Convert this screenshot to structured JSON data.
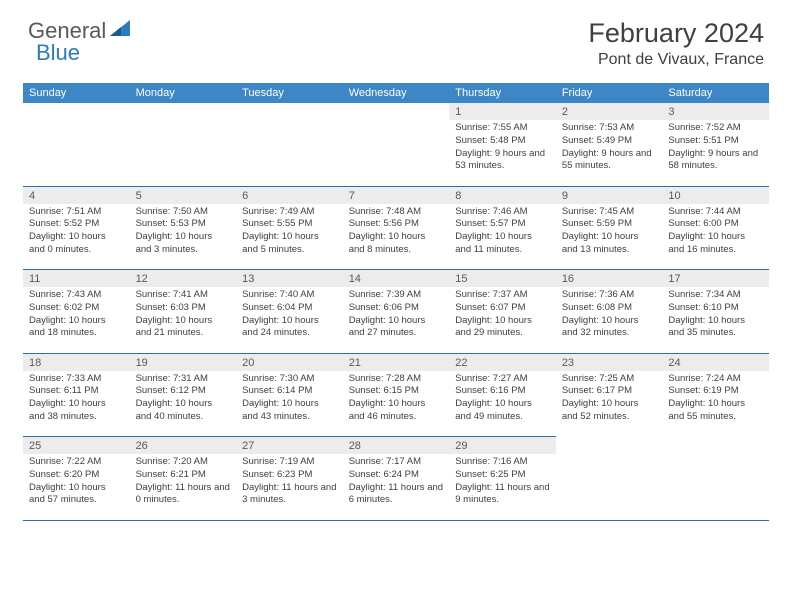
{
  "logo": {
    "text_general": "General",
    "text_blue": "Blue"
  },
  "title": {
    "month": "February 2024",
    "location": "Pont de Vivaux, France"
  },
  "colors": {
    "header_bg": "#3d87c7",
    "header_text": "#ffffff",
    "daynum_bg": "#ececec",
    "daynum_text": "#595959",
    "cell_text": "#404040",
    "rule": "#2b6fa8",
    "logo_gray": "#595959",
    "logo_blue": "#2b7bbf"
  },
  "weekdays": [
    "Sunday",
    "Monday",
    "Tuesday",
    "Wednesday",
    "Thursday",
    "Friday",
    "Saturday"
  ],
  "weeks": [
    [
      null,
      null,
      null,
      null,
      {
        "n": "1",
        "sunrise": "7:55 AM",
        "sunset": "5:48 PM",
        "daylight": "9 hours and 53 minutes."
      },
      {
        "n": "2",
        "sunrise": "7:53 AM",
        "sunset": "5:49 PM",
        "daylight": "9 hours and 55 minutes."
      },
      {
        "n": "3",
        "sunrise": "7:52 AM",
        "sunset": "5:51 PM",
        "daylight": "9 hours and 58 minutes."
      }
    ],
    [
      {
        "n": "4",
        "sunrise": "7:51 AM",
        "sunset": "5:52 PM",
        "daylight": "10 hours and 0 minutes."
      },
      {
        "n": "5",
        "sunrise": "7:50 AM",
        "sunset": "5:53 PM",
        "daylight": "10 hours and 3 minutes."
      },
      {
        "n": "6",
        "sunrise": "7:49 AM",
        "sunset": "5:55 PM",
        "daylight": "10 hours and 5 minutes."
      },
      {
        "n": "7",
        "sunrise": "7:48 AM",
        "sunset": "5:56 PM",
        "daylight": "10 hours and 8 minutes."
      },
      {
        "n": "8",
        "sunrise": "7:46 AM",
        "sunset": "5:57 PM",
        "daylight": "10 hours and 11 minutes."
      },
      {
        "n": "9",
        "sunrise": "7:45 AM",
        "sunset": "5:59 PM",
        "daylight": "10 hours and 13 minutes."
      },
      {
        "n": "10",
        "sunrise": "7:44 AM",
        "sunset": "6:00 PM",
        "daylight": "10 hours and 16 minutes."
      }
    ],
    [
      {
        "n": "11",
        "sunrise": "7:43 AM",
        "sunset": "6:02 PM",
        "daylight": "10 hours and 18 minutes."
      },
      {
        "n": "12",
        "sunrise": "7:41 AM",
        "sunset": "6:03 PM",
        "daylight": "10 hours and 21 minutes."
      },
      {
        "n": "13",
        "sunrise": "7:40 AM",
        "sunset": "6:04 PM",
        "daylight": "10 hours and 24 minutes."
      },
      {
        "n": "14",
        "sunrise": "7:39 AM",
        "sunset": "6:06 PM",
        "daylight": "10 hours and 27 minutes."
      },
      {
        "n": "15",
        "sunrise": "7:37 AM",
        "sunset": "6:07 PM",
        "daylight": "10 hours and 29 minutes."
      },
      {
        "n": "16",
        "sunrise": "7:36 AM",
        "sunset": "6:08 PM",
        "daylight": "10 hours and 32 minutes."
      },
      {
        "n": "17",
        "sunrise": "7:34 AM",
        "sunset": "6:10 PM",
        "daylight": "10 hours and 35 minutes."
      }
    ],
    [
      {
        "n": "18",
        "sunrise": "7:33 AM",
        "sunset": "6:11 PM",
        "daylight": "10 hours and 38 minutes."
      },
      {
        "n": "19",
        "sunrise": "7:31 AM",
        "sunset": "6:12 PM",
        "daylight": "10 hours and 40 minutes."
      },
      {
        "n": "20",
        "sunrise": "7:30 AM",
        "sunset": "6:14 PM",
        "daylight": "10 hours and 43 minutes."
      },
      {
        "n": "21",
        "sunrise": "7:28 AM",
        "sunset": "6:15 PM",
        "daylight": "10 hours and 46 minutes."
      },
      {
        "n": "22",
        "sunrise": "7:27 AM",
        "sunset": "6:16 PM",
        "daylight": "10 hours and 49 minutes."
      },
      {
        "n": "23",
        "sunrise": "7:25 AM",
        "sunset": "6:17 PM",
        "daylight": "10 hours and 52 minutes."
      },
      {
        "n": "24",
        "sunrise": "7:24 AM",
        "sunset": "6:19 PM",
        "daylight": "10 hours and 55 minutes."
      }
    ],
    [
      {
        "n": "25",
        "sunrise": "7:22 AM",
        "sunset": "6:20 PM",
        "daylight": "10 hours and 57 minutes."
      },
      {
        "n": "26",
        "sunrise": "7:20 AM",
        "sunset": "6:21 PM",
        "daylight": "11 hours and 0 minutes."
      },
      {
        "n": "27",
        "sunrise": "7:19 AM",
        "sunset": "6:23 PM",
        "daylight": "11 hours and 3 minutes."
      },
      {
        "n": "28",
        "sunrise": "7:17 AM",
        "sunset": "6:24 PM",
        "daylight": "11 hours and 6 minutes."
      },
      {
        "n": "29",
        "sunrise": "7:16 AM",
        "sunset": "6:25 PM",
        "daylight": "11 hours and 9 minutes."
      },
      null,
      null
    ]
  ],
  "labels": {
    "sunrise": "Sunrise:",
    "sunset": "Sunset:",
    "daylight": "Daylight:"
  }
}
